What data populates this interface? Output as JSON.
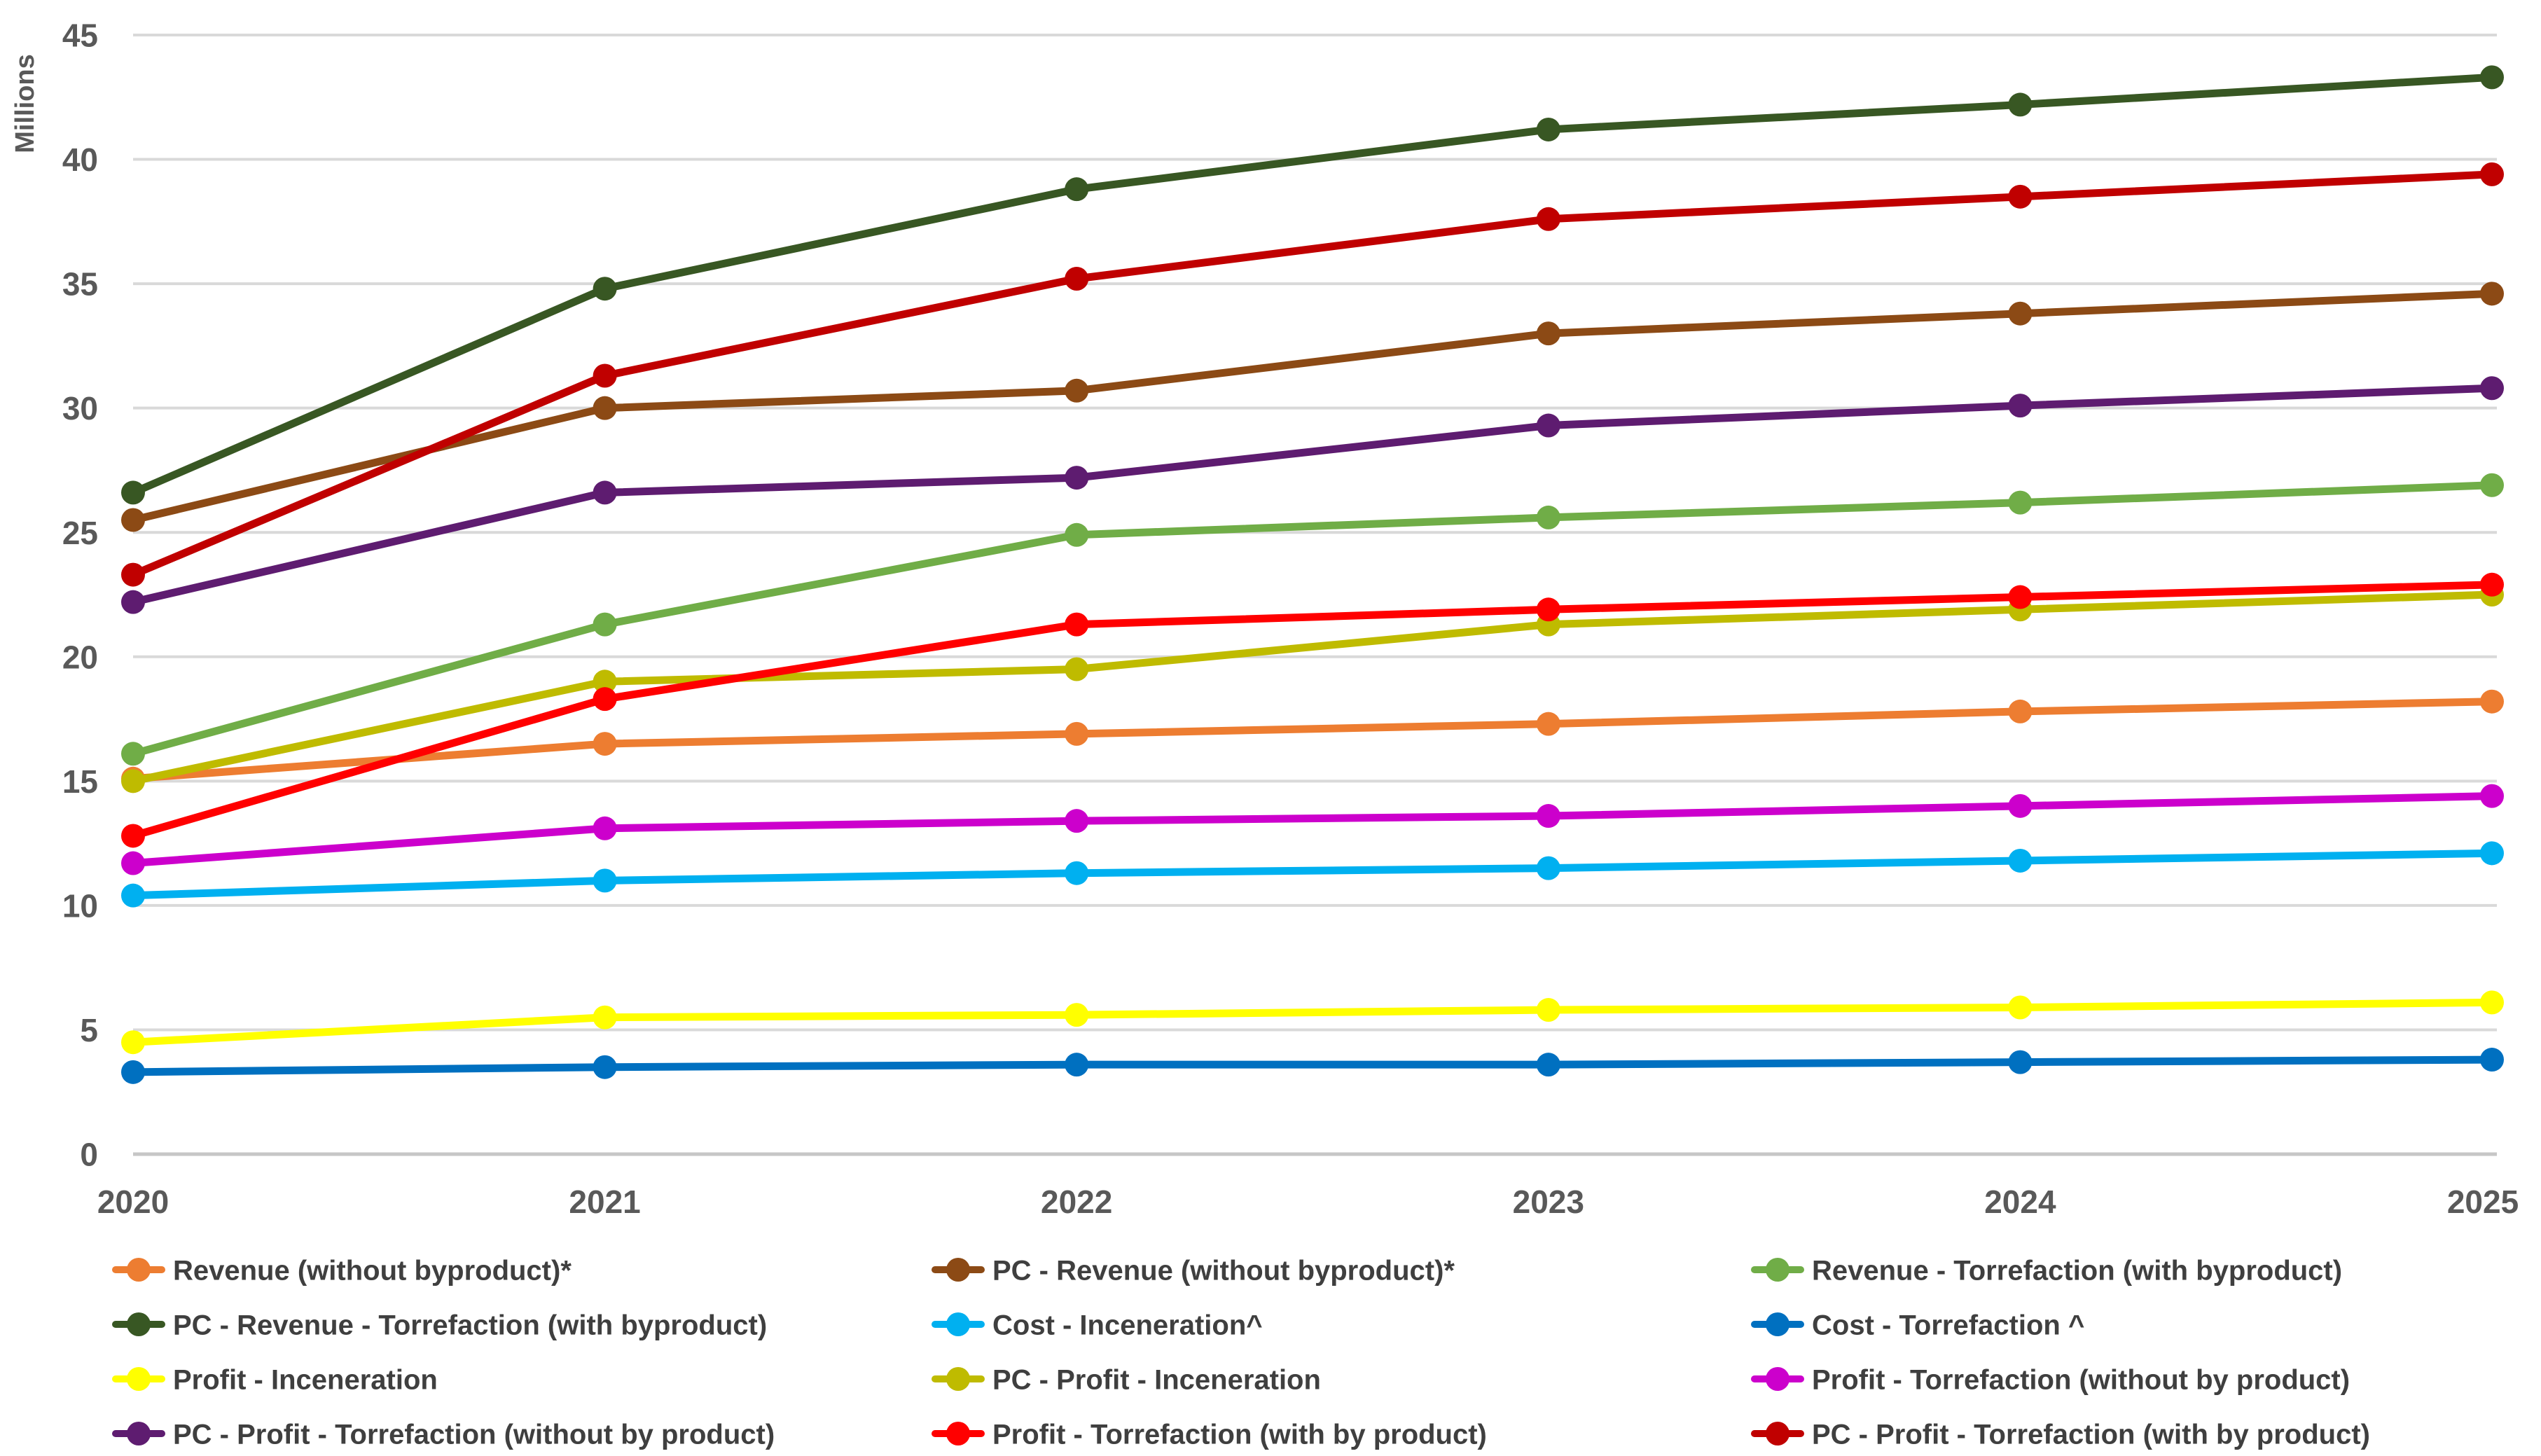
{
  "chart_data": {
    "type": "line",
    "title": "",
    "xlabel": "",
    "ylabel": "Millions",
    "x": [
      "2020",
      "2021",
      "2022",
      "2023",
      "2024",
      "2025"
    ],
    "ylim": [
      0,
      45
    ],
    "ytick_step": 5,
    "yticks": [
      0,
      5,
      10,
      15,
      20,
      25,
      30,
      35,
      40,
      45
    ],
    "grid": "horizontal",
    "marker": "circle",
    "legend_position": "bottom",
    "legend_columns": 3,
    "series": [
      {
        "name": "Revenue (without byproduct)*",
        "color": "#ED7D31",
        "values": [
          15.1,
          16.5,
          16.9,
          17.3,
          17.8,
          18.2
        ]
      },
      {
        "name": "PC - Revenue (without byproduct)*",
        "color": "#8C4A15",
        "values": [
          25.5,
          30.0,
          30.7,
          33.0,
          33.8,
          34.6
        ]
      },
      {
        "name": "Revenue - Torrefaction (with byproduct)",
        "color": "#70AD47",
        "values": [
          16.1,
          21.3,
          24.9,
          25.6,
          26.2,
          26.9
        ]
      },
      {
        "name": "PC - Revenue - Torrefaction (with byproduct)",
        "color": "#385723",
        "values": [
          26.6,
          34.8,
          38.8,
          41.2,
          42.2,
          43.3
        ]
      },
      {
        "name": "Cost - Inceneration^",
        "color": "#00B0F0",
        "values": [
          10.4,
          11.0,
          11.3,
          11.5,
          11.8,
          12.1
        ]
      },
      {
        "name": "Cost - Torrefaction ^",
        "color": "#0070C0",
        "values": [
          3.3,
          3.5,
          3.6,
          3.6,
          3.7,
          3.8
        ]
      },
      {
        "name": "Profit - Inceneration",
        "color": "#FFFF00",
        "values": [
          4.5,
          5.5,
          5.6,
          5.8,
          5.9,
          6.1
        ]
      },
      {
        "name": "PC - Profit - Inceneration",
        "color": "#BFBB00",
        "values": [
          15.0,
          19.0,
          19.5,
          21.3,
          21.9,
          22.5
        ]
      },
      {
        "name": "Profit - Torrefaction (without by product)",
        "color": "#CC00CC",
        "values": [
          11.7,
          13.1,
          13.4,
          13.6,
          14.0,
          14.4
        ]
      },
      {
        "name": "PC - Profit - Torrefaction (without by product)",
        "color": "#5E1C70",
        "values": [
          22.2,
          26.6,
          27.2,
          29.3,
          30.1,
          30.8
        ]
      },
      {
        "name": "Profit - Torrefaction (with by product)",
        "color": "#FF0000",
        "values": [
          12.8,
          18.3,
          21.3,
          21.9,
          22.4,
          22.9
        ]
      },
      {
        "name": "PC - Profit - Torrefaction (with by product)",
        "color": "#C00000",
        "values": [
          23.3,
          31.3,
          35.2,
          37.6,
          38.5,
          39.4
        ]
      }
    ],
    "colors": {
      "gridline": "#D9D9D9",
      "baseline": "#C6C6C6",
      "axis_text": "#595959",
      "legend_text": "#3F3F3F",
      "background": "#FFFFFF"
    }
  }
}
